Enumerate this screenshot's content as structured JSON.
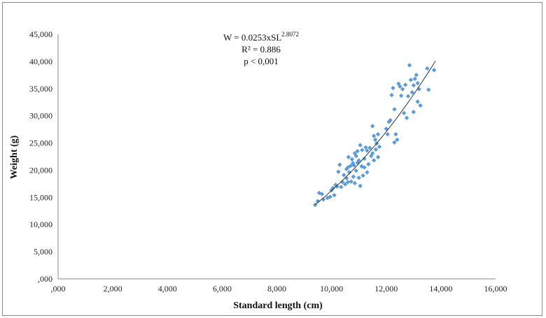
{
  "chart_data": {
    "type": "scatter",
    "title": "",
    "xlabel": "Standard length (cm)",
    "ylabel": "Weight (g)",
    "xlim": [
      0,
      16
    ],
    "ylim": [
      0,
      45
    ],
    "x_ticks": [
      0,
      2,
      4,
      6,
      8,
      10,
      12,
      14,
      16
    ],
    "y_ticks": [
      0,
      5,
      10,
      15,
      20,
      25,
      30,
      35,
      40,
      45
    ],
    "x_tick_labels": [
      ",000",
      "2,000",
      "4,000",
      "6,000",
      "8,000",
      "10,000",
      "12,000",
      "14,000",
      "16,000"
    ],
    "y_tick_labels": [
      ",000",
      "5,000",
      "10,000",
      "15,000",
      "20,000",
      "25,000",
      "30,000",
      "35,000",
      "40,000",
      "45,000"
    ],
    "grid": false,
    "legend": "none",
    "point_color": "#5b9bd5",
    "line_color": "#333333",
    "annotation": {
      "equation_prefix": "W = 0.0253xSL",
      "equation_exponent": "2.8072",
      "r_squared": "R² = 0.886",
      "p_value": "p < 0,001"
    },
    "trendline": {
      "a": 0.0253,
      "b": 2.8072,
      "x_start": 9.4,
      "x_end": 13.8
    },
    "points": [
      [
        9.4,
        13.6
      ],
      [
        9.5,
        14.3
      ],
      [
        9.55,
        15.8
      ],
      [
        9.65,
        15.6
      ],
      [
        9.7,
        14.6
      ],
      [
        9.85,
        14.9
      ],
      [
        9.95,
        15.1
      ],
      [
        10.0,
        16.3
      ],
      [
        10.05,
        16.7
      ],
      [
        10.1,
        15.4
      ],
      [
        10.15,
        17.3
      ],
      [
        10.2,
        17.0
      ],
      [
        10.25,
        19.7
      ],
      [
        10.3,
        21.0
      ],
      [
        10.35,
        16.9
      ],
      [
        10.4,
        17.8
      ],
      [
        10.45,
        19.1
      ],
      [
        10.5,
        17.4
      ],
      [
        10.55,
        18.5
      ],
      [
        10.55,
        20.2
      ],
      [
        10.6,
        17.8
      ],
      [
        10.6,
        20.5
      ],
      [
        10.62,
        22.4
      ],
      [
        10.65,
        19.6
      ],
      [
        10.7,
        20.8
      ],
      [
        10.72,
        17.9
      ],
      [
        10.75,
        22.0
      ],
      [
        10.78,
        21.3
      ],
      [
        10.8,
        18.8
      ],
      [
        10.82,
        20.9
      ],
      [
        10.85,
        23.1
      ],
      [
        10.85,
        17.6
      ],
      [
        10.9,
        22.6
      ],
      [
        10.9,
        19.9
      ],
      [
        10.95,
        21.4
      ],
      [
        10.95,
        23.5
      ],
      [
        11.0,
        18.6
      ],
      [
        11.0,
        21.8
      ],
      [
        11.05,
        24.6
      ],
      [
        11.05,
        17.1
      ],
      [
        11.1,
        20.7
      ],
      [
        11.12,
        23.7
      ],
      [
        11.15,
        19.0
      ],
      [
        11.2,
        20.5
      ],
      [
        11.2,
        22.1
      ],
      [
        11.25,
        24.2
      ],
      [
        11.3,
        23.6
      ],
      [
        11.3,
        19.6
      ],
      [
        11.35,
        21.1
      ],
      [
        11.4,
        24.1
      ],
      [
        11.45,
        22.6
      ],
      [
        11.5,
        23.1
      ],
      [
        11.5,
        28.1
      ],
      [
        11.55,
        26.3
      ],
      [
        11.55,
        21.8
      ],
      [
        11.6,
        25.6
      ],
      [
        11.62,
        23.8
      ],
      [
        11.65,
        24.9
      ],
      [
        11.7,
        22.4
      ],
      [
        11.7,
        26.6
      ],
      [
        11.75,
        24.3
      ],
      [
        12.0,
        27.6
      ],
      [
        12.05,
        26.6
      ],
      [
        12.1,
        28.9
      ],
      [
        12.15,
        29.2
      ],
      [
        12.2,
        33.8
      ],
      [
        12.25,
        35.1
      ],
      [
        12.3,
        31.2
      ],
      [
        12.3,
        25.1
      ],
      [
        12.35,
        26.6
      ],
      [
        12.4,
        25.6
      ],
      [
        12.45,
        35.9
      ],
      [
        12.5,
        35.4
      ],
      [
        12.55,
        33.7
      ],
      [
        12.6,
        34.9
      ],
      [
        12.65,
        30.5
      ],
      [
        12.7,
        35.7
      ],
      [
        12.75,
        29.6
      ],
      [
        12.8,
        33.6
      ],
      [
        12.85,
        39.3
      ],
      [
        12.9,
        36.6
      ],
      [
        12.95,
        34.3
      ],
      [
        13.0,
        35.6
      ],
      [
        13.0,
        30.7
      ],
      [
        13.05,
        36.8
      ],
      [
        13.1,
        37.5
      ],
      [
        13.15,
        36.0
      ],
      [
        13.15,
        32.6
      ],
      [
        13.2,
        34.9
      ],
      [
        13.25,
        31.9
      ],
      [
        13.5,
        38.7
      ],
      [
        13.55,
        34.8
      ],
      [
        13.75,
        38.4
      ]
    ]
  }
}
